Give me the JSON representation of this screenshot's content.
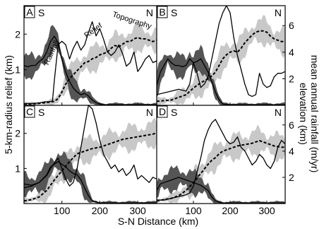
{
  "figure": {
    "y_left_label": "5-km-radius relief (km)",
    "y_right_label_1": "elevation (km)",
    "y_right_label_2": "mean annual rainfall (m/yr)",
    "x_label": "S-N Distance (km)",
    "x_ticks": [
      "100",
      "200",
      "300"
    ],
    "left_ticks": [
      "1",
      "2"
    ],
    "right_ticks": [
      "2",
      "4",
      "6"
    ],
    "south": "S",
    "north": "N"
  },
  "colors": {
    "rainfall_band": "#555555",
    "topography_band": "#c8c8c8",
    "line": "#000000",
    "panel_border": "#000000"
  },
  "chart_data": [
    {
      "type": "line",
      "panel": "A",
      "annotations": [
        "Rainfall",
        "Relief",
        "Topography"
      ],
      "xlim": [
        0,
        350
      ],
      "ylim_left": [
        0,
        2.8
      ],
      "ylim_right": [
        0,
        7.5
      ],
      "series": [
        {
          "name": "Relief",
          "axis": "left",
          "style": "solid",
          "x": [
            0,
            20,
            40,
            55,
            65,
            75,
            80,
            90,
            100,
            110,
            120,
            130,
            140,
            150,
            160,
            170,
            180,
            190,
            200,
            210,
            220,
            230,
            240,
            250,
            260,
            270,
            280,
            290,
            300,
            310,
            320,
            330,
            340,
            350
          ],
          "y": [
            0.05,
            0.05,
            0.07,
            0.1,
            0.1,
            0.12,
            0.7,
            1.7,
            1.8,
            1.7,
            1.3,
            1.6,
            1.8,
            1.55,
            1.7,
            2.05,
            2.35,
            1.95,
            2.15,
            1.85,
            1.5,
            1.4,
            1.5,
            1.7,
            1.45,
            1.1,
            1.2,
            1.5,
            0.95,
            1.1,
            1.3,
            1.4,
            1.2,
            1.25
          ]
        },
        {
          "name": "Topography",
          "axis": "right",
          "style": "dashed",
          "x": [
            0,
            20,
            40,
            60,
            80,
            90,
            100,
            110,
            120,
            130,
            140,
            150,
            160,
            170,
            180,
            190,
            200,
            210,
            220,
            230,
            240,
            250,
            260,
            270,
            280,
            290,
            300,
            310,
            320,
            330,
            340,
            350
          ],
          "y": [
            0.1,
            0.1,
            0.15,
            0.2,
            0.3,
            0.5,
            1.0,
            1.6,
            2.0,
            2.3,
            2.6,
            2.9,
            3.2,
            3.3,
            3.5,
            3.6,
            3.8,
            3.9,
            4.0,
            4.3,
            4.5,
            4.4,
            4.6,
            4.8,
            4.8,
            5.0,
            5.1,
            5.0,
            5.0,
            4.9,
            4.8,
            4.9
          ]
        },
        {
          "name": "Rainfall",
          "axis": "right",
          "style": "solid",
          "x": [
            0,
            10,
            20,
            30,
            40,
            50,
            60,
            70,
            80,
            90,
            100,
            110,
            120,
            130,
            140,
            150,
            160,
            170,
            180,
            190,
            200,
            210,
            220,
            230,
            250,
            300,
            350
          ],
          "y": [
            3.0,
            2.9,
            3.0,
            3.0,
            3.3,
            3.5,
            4.0,
            4.8,
            5.2,
            4.7,
            3.5,
            2.5,
            1.8,
            1.3,
            1.0,
            0.8,
            0.9,
            0.7,
            0.4,
            0.2,
            0.1,
            0.05,
            0.05,
            0.05,
            0.05,
            0.05,
            0.05
          ]
        }
      ]
    },
    {
      "type": "line",
      "panel": "B",
      "xlim": [
        0,
        350
      ],
      "ylim_left": [
        0,
        2.8
      ],
      "ylim_right": [
        0,
        7.5
      ],
      "series": [
        {
          "name": "Relief",
          "axis": "left",
          "style": "solid",
          "x": [
            0,
            20,
            40,
            60,
            80,
            90,
            100,
            110,
            120,
            130,
            140,
            150,
            160,
            170,
            180,
            190,
            200,
            210,
            220,
            230,
            240,
            250,
            260,
            270,
            280,
            290,
            300,
            310,
            320,
            330,
            340,
            350
          ],
          "y": [
            0.3,
            0.35,
            0.4,
            0.45,
            0.4,
            0.6,
            1.2,
            0.9,
            0.5,
            0.6,
            0.8,
            1.3,
            1.8,
            2.3,
            2.6,
            2.8,
            2.6,
            1.9,
            1.4,
            1.0,
            0.6,
            0.3,
            0.25,
            0.3,
            0.9,
            0.6,
            0.5,
            0.55,
            0.8,
            0.9,
            0.9,
            0.95
          ]
        },
        {
          "name": "Topography",
          "axis": "right",
          "style": "dashed",
          "x": [
            0,
            20,
            40,
            60,
            80,
            100,
            120,
            140,
            150,
            160,
            170,
            180,
            190,
            200,
            210,
            220,
            230,
            240,
            250,
            260,
            270,
            280,
            290,
            300,
            310,
            320,
            330,
            340,
            350
          ],
          "y": [
            0.3,
            0.35,
            0.4,
            0.6,
            0.8,
            1.3,
            1.7,
            2.0,
            2.2,
            2.5,
            3.0,
            3.5,
            3.8,
            4.0,
            4.1,
            4.0,
            4.3,
            4.7,
            5.0,
            5.3,
            5.5,
            5.6,
            5.6,
            5.5,
            5.2,
            5.0,
            4.9,
            4.8,
            4.8
          ]
        },
        {
          "name": "Rainfall",
          "axis": "right",
          "style": "solid",
          "x": [
            0,
            10,
            20,
            30,
            40,
            50,
            60,
            70,
            80,
            90,
            100,
            110,
            120,
            130,
            140,
            150,
            160,
            170,
            180,
            200,
            250,
            300,
            350
          ],
          "y": [
            1.5,
            2.5,
            3.0,
            3.5,
            3.2,
            3.0,
            3.0,
            2.9,
            3.0,
            3.5,
            3.2,
            3.3,
            3.5,
            3.0,
            2.5,
            1.8,
            1.0,
            0.4,
            0.1,
            0.05,
            0.05,
            0.05,
            0.05
          ]
        }
      ]
    },
    {
      "type": "line",
      "panel": "C",
      "xlim": [
        0,
        350
      ],
      "ylim_left": [
        0,
        2.8
      ],
      "ylim_right": [
        0,
        7.5
      ],
      "series": [
        {
          "name": "Relief",
          "axis": "left",
          "style": "solid",
          "x": [
            0,
            20,
            40,
            60,
            70,
            80,
            90,
            100,
            110,
            120,
            130,
            140,
            150,
            160,
            170,
            180,
            190,
            200,
            210,
            220,
            230,
            240,
            250,
            260,
            270,
            280,
            290,
            300,
            310,
            320,
            330,
            340,
            350
          ],
          "y": [
            0.45,
            0.5,
            0.6,
            0.8,
            1.0,
            1.15,
            1.3,
            1.0,
            0.7,
            0.5,
            0.6,
            1.0,
            1.6,
            2.2,
            2.8,
            2.7,
            2.3,
            1.8,
            1.4,
            1.2,
            1.0,
            1.1,
            0.9,
            1.0,
            0.8,
            0.9,
            1.1,
            0.7,
            0.8,
            0.7,
            0.6,
            0.75,
            0.7
          ]
        },
        {
          "name": "Topography",
          "axis": "right",
          "style": "dashed",
          "x": [
            0,
            20,
            40,
            60,
            80,
            100,
            120,
            140,
            160,
            170,
            180,
            200,
            220,
            240,
            260,
            280,
            300,
            320,
            340,
            350
          ],
          "y": [
            0.2,
            0.3,
            0.5,
            1.0,
            1.8,
            2.5,
            3.2,
            3.8,
            4.0,
            4.1,
            4.2,
            4.3,
            4.5,
            4.7,
            4.9,
            5.0,
            5.1,
            5.2,
            5.3,
            5.4
          ]
        },
        {
          "name": "Rainfall",
          "axis": "right",
          "style": "solid",
          "x": [
            0,
            20,
            40,
            60,
            70,
            80,
            90,
            100,
            110,
            120,
            130,
            140,
            150,
            160,
            170,
            180,
            200,
            250,
            300,
            350
          ],
          "y": [
            1.5,
            1.4,
            1.6,
            2.2,
            2.8,
            3.0,
            3.2,
            3.0,
            2.8,
            2.5,
            2.3,
            2.2,
            1.8,
            1.2,
            0.6,
            0.2,
            0.05,
            0.05,
            0.05,
            0.05
          ]
        }
      ]
    },
    {
      "type": "line",
      "panel": "D",
      "xlim": [
        0,
        350
      ],
      "ylim_left": [
        0,
        2.8
      ],
      "ylim_right": [
        0,
        7.5
      ],
      "series": [
        {
          "name": "Relief",
          "axis": "left",
          "style": "solid",
          "x": [
            0,
            20,
            40,
            60,
            80,
            90,
            100,
            110,
            120,
            130,
            140,
            150,
            160,
            170,
            180,
            190,
            200,
            210,
            220,
            230,
            240,
            250,
            260,
            270,
            280,
            290,
            300,
            310,
            320,
            330,
            340,
            350
          ],
          "y": [
            0.1,
            0.1,
            0.15,
            0.2,
            0.25,
            0.3,
            0.5,
            0.9,
            1.3,
            1.8,
            2.1,
            2.3,
            2.4,
            2.2,
            2.0,
            1.8,
            1.7,
            1.75,
            1.9,
            1.6,
            1.5,
            1.3,
            1.1,
            1.2,
            1.4,
            1.3,
            1.1,
            1.0,
            1.2,
            1.6,
            1.8,
            1.7
          ]
        },
        {
          "name": "Topography",
          "axis": "right",
          "style": "dashed",
          "x": [
            0,
            20,
            40,
            60,
            80,
            100,
            120,
            140,
            150,
            160,
            170,
            180,
            200,
            220,
            240,
            260,
            280,
            300,
            320,
            340,
            350
          ],
          "y": [
            0.2,
            0.3,
            0.4,
            0.6,
            1.0,
            1.6,
            2.3,
            3.0,
            3.3,
            3.5,
            3.8,
            4.0,
            4.2,
            4.4,
            4.5,
            4.6,
            4.8,
            4.6,
            4.4,
            4.3,
            4.3
          ]
        },
        {
          "name": "Rainfall",
          "axis": "right",
          "style": "solid",
          "x": [
            0,
            10,
            20,
            40,
            60,
            80,
            100,
            120,
            140,
            150,
            160,
            170,
            180,
            200,
            250,
            300,
            350
          ],
          "y": [
            1.0,
            1.5,
            1.6,
            1.8,
            2.0,
            1.8,
            1.6,
            1.4,
            1.0,
            0.5,
            0.2,
            0.1,
            0.05,
            0.05,
            0.05,
            0.05,
            0.05
          ]
        }
      ]
    }
  ]
}
